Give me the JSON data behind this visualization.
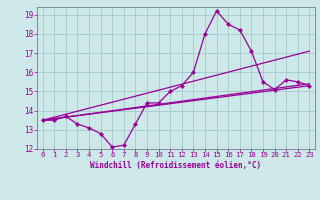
{
  "background_color": "#cce8e8",
  "grid_color": "#aacccc",
  "line_color": "#990099",
  "spine_color": "#666688",
  "xlabel": "Windchill (Refroidissement éolien,°C)",
  "xlim": [
    -0.5,
    23.5
  ],
  "ylim": [
    12,
    19.4
  ],
  "xticks": [
    0,
    1,
    2,
    3,
    4,
    5,
    6,
    7,
    8,
    9,
    10,
    11,
    12,
    13,
    14,
    15,
    16,
    17,
    18,
    19,
    20,
    21,
    22,
    23
  ],
  "yticks": [
    12,
    13,
    14,
    15,
    16,
    17,
    18,
    19
  ],
  "series1_x": [
    0,
    1,
    2,
    3,
    4,
    5,
    6,
    7,
    8,
    9,
    10,
    11,
    12,
    13,
    14,
    15,
    16,
    17,
    18,
    19,
    20,
    21,
    22,
    23
  ],
  "series1_y": [
    13.5,
    13.5,
    13.7,
    13.3,
    13.1,
    12.8,
    12.1,
    12.2,
    13.3,
    14.4,
    14.4,
    15.0,
    15.3,
    16.0,
    18.0,
    19.2,
    18.5,
    18.2,
    17.1,
    15.5,
    15.1,
    15.6,
    15.5,
    15.3
  ],
  "series2_x": [
    0,
    23
  ],
  "series2_y": [
    13.5,
    15.3
  ],
  "series3_x": [
    0,
    23
  ],
  "series3_y": [
    13.5,
    17.1
  ],
  "series4_x": [
    0,
    23
  ],
  "series4_y": [
    13.5,
    15.4
  ]
}
